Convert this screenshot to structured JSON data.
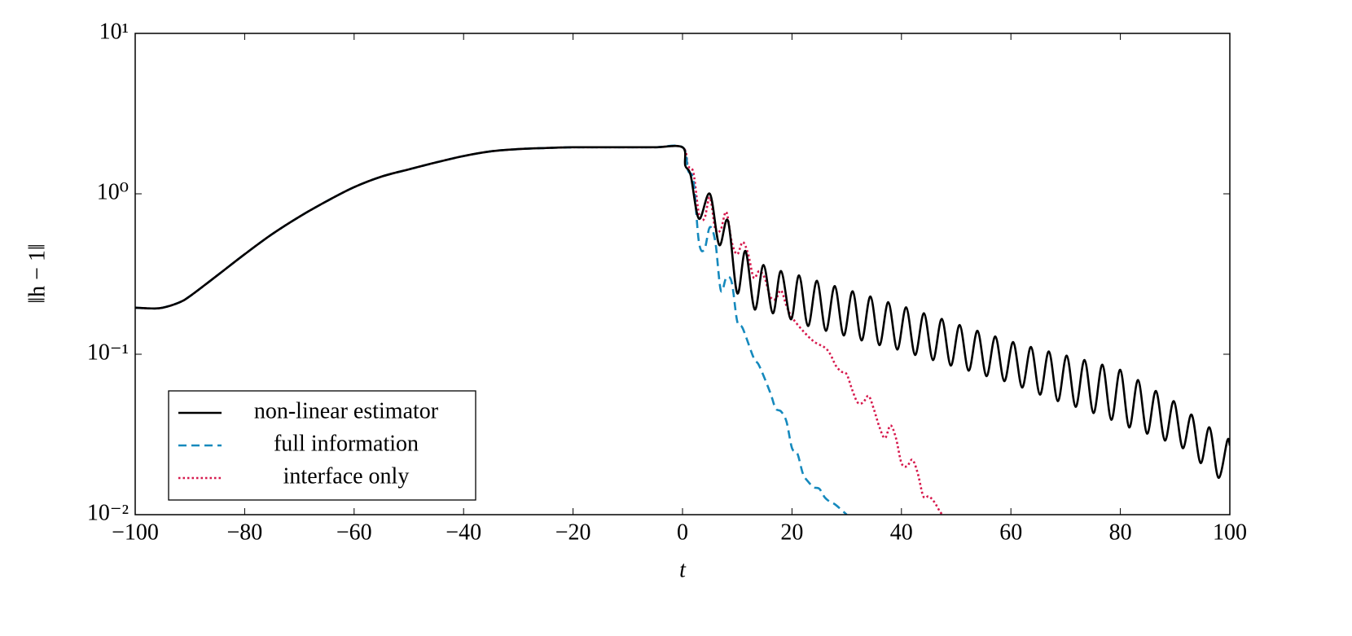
{
  "chart_data": {
    "type": "line",
    "y_label": "‖h − 1‖",
    "x_label": "t",
    "xlim": [
      -100,
      100
    ],
    "xticks": [
      {
        "value": -100,
        "label": "−100"
      },
      {
        "value": -80,
        "label": "−80"
      },
      {
        "value": -60,
        "label": "−60"
      },
      {
        "value": -40,
        "label": "−40"
      },
      {
        "value": -20,
        "label": "−20"
      },
      0,
      20,
      40,
      60,
      80,
      100
    ],
    "ylim": [
      0.01,
      10
    ],
    "yticks": [
      {
        "value": 0.01,
        "label": "10⁻²"
      },
      {
        "value": 0.1,
        "label": "10⁻¹"
      },
      {
        "value": 1,
        "label": "10⁰"
      },
      {
        "value": 10,
        "label": "10¹"
      }
    ],
    "y_scale": "log",
    "grid": false,
    "legend": "lower left",
    "series": [
      {
        "name": "non-linear estimator",
        "color": "#000000",
        "linestyle": "solid",
        "x": [
          -100,
          -97,
          -95,
          -92,
          -90,
          -85,
          -80,
          -75,
          -70,
          -65,
          -60,
          -55,
          -50,
          -45,
          -40,
          -35,
          -30,
          -25,
          -20,
          -15,
          -10,
          -5,
          0,
          0.5,
          1.5,
          3,
          5,
          6.7,
          8.3,
          10,
          11.5,
          13.2,
          14.8,
          16.5,
          18,
          19.8,
          21.3,
          22.93,
          24.56,
          26.19,
          27.82,
          29.45,
          31.08,
          32.71,
          34.34,
          35.97,
          37.6,
          39.23,
          40.86,
          42.49,
          44.12,
          45.75,
          47.38,
          49.01,
          50.64,
          52.27,
          53.9,
          55.53,
          57.16,
          58.79,
          60.42,
          62.05,
          63.68,
          65.31,
          66.94,
          68.57,
          70.2,
          71.83,
          73.46,
          75.09,
          76.72,
          78.35,
          79.98,
          81.61,
          83.24,
          84.87,
          86.5,
          88.13,
          89.76,
          91.39,
          93.02,
          94.65,
          96.28,
          97.91,
          99.54,
          100
        ],
        "values": [
          0.195,
          0.193,
          0.195,
          0.21,
          0.23,
          0.31,
          0.42,
          0.56,
          0.72,
          0.9,
          1.1,
          1.28,
          1.42,
          1.57,
          1.72,
          1.84,
          1.9,
          1.93,
          1.95,
          1.95,
          1.95,
          1.95,
          1.95,
          1.5,
          1.3,
          0.7,
          1.0,
          0.48,
          0.68,
          0.24,
          0.44,
          0.19,
          0.36,
          0.18,
          0.33,
          0.165,
          0.31,
          0.15,
          0.287,
          0.14,
          0.266,
          0.131,
          0.247,
          0.122,
          0.229,
          0.114,
          0.211,
          0.107,
          0.196,
          0.099,
          0.18,
          0.092,
          0.166,
          0.085,
          0.152,
          0.079,
          0.14,
          0.073,
          0.129,
          0.068,
          0.119,
          0.062,
          0.111,
          0.056,
          0.104,
          0.051,
          0.098,
          0.047,
          0.092,
          0.043,
          0.086,
          0.039,
          0.08,
          0.035,
          0.069,
          0.032,
          0.059,
          0.029,
          0.051,
          0.026,
          0.042,
          0.021,
          0.035,
          0.017,
          0.029,
          0.027
        ]
      },
      {
        "name": "full information",
        "color": "#1589bd",
        "linestyle": "dashed",
        "x": [
          -100,
          -97,
          -95,
          -92,
          -90,
          -85,
          -80,
          -75,
          -70,
          -65,
          -60,
          -55,
          -50,
          -45,
          -40,
          -35,
          -30,
          -25,
          -20,
          -15,
          -10,
          -5,
          0,
          1,
          2,
          3,
          4,
          5,
          6,
          7,
          8,
          9,
          10,
          11,
          13,
          14,
          16,
          17,
          18,
          19,
          20,
          21,
          22,
          23,
          24,
          25,
          26,
          27,
          28,
          30
        ],
        "values": [
          0.195,
          0.193,
          0.195,
          0.21,
          0.23,
          0.31,
          0.42,
          0.56,
          0.72,
          0.9,
          1.1,
          1.28,
          1.42,
          1.57,
          1.72,
          1.84,
          1.9,
          1.93,
          1.95,
          1.95,
          1.95,
          1.95,
          1.95,
          1.4,
          1.2,
          0.5,
          0.45,
          0.62,
          0.5,
          0.25,
          0.3,
          0.28,
          0.16,
          0.145,
          0.095,
          0.085,
          0.058,
          0.046,
          0.044,
          0.038,
          0.026,
          0.024,
          0.018,
          0.016,
          0.0148,
          0.0145,
          0.0128,
          0.012,
          0.0115,
          0.01
        ]
      },
      {
        "name": "interface only",
        "color": "#d6184c",
        "linestyle": "dotted",
        "x": [
          -100,
          -97,
          -95,
          -92,
          -90,
          -85,
          -80,
          -75,
          -70,
          -65,
          -60,
          -55,
          -50,
          -45,
          -40,
          -35,
          -30,
          -25,
          -20,
          -15,
          -10,
          -5,
          0,
          1,
          2,
          3,
          4,
          5,
          6,
          7,
          8,
          9,
          10,
          11,
          12,
          13,
          14,
          15,
          16,
          17,
          18,
          19,
          20,
          22,
          24,
          26,
          27,
          28,
          29,
          30,
          31,
          32,
          33,
          34,
          35,
          36,
          37,
          38,
          39,
          40,
          41,
          42,
          43,
          44,
          45,
          46,
          47,
          47.5
        ],
        "values": [
          0.195,
          0.193,
          0.195,
          0.21,
          0.23,
          0.31,
          0.42,
          0.56,
          0.72,
          0.9,
          1.1,
          1.28,
          1.42,
          1.57,
          1.72,
          1.84,
          1.9,
          1.93,
          1.95,
          1.95,
          1.95,
          1.95,
          1.95,
          1.5,
          1.35,
          0.75,
          0.7,
          0.95,
          0.6,
          0.6,
          0.77,
          0.5,
          0.42,
          0.5,
          0.42,
          0.3,
          0.33,
          0.3,
          0.23,
          0.22,
          0.25,
          0.2,
          0.17,
          0.14,
          0.12,
          0.11,
          0.1,
          0.085,
          0.078,
          0.075,
          0.06,
          0.05,
          0.05,
          0.055,
          0.045,
          0.035,
          0.03,
          0.036,
          0.03,
          0.021,
          0.02,
          0.022,
          0.018,
          0.013,
          0.013,
          0.012,
          0.0105,
          0.01
        ]
      }
    ]
  }
}
